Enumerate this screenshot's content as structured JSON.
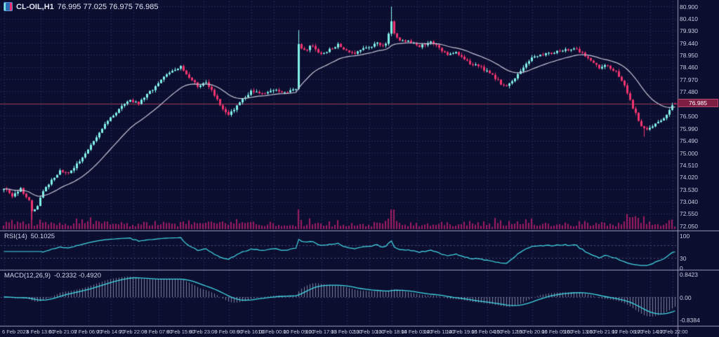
{
  "header": {
    "symbol_period": "CL-OIL,H1",
    "ohlc": "76.995 77.025 76.975 76.985",
    "bid_display": "76.985"
  },
  "panels": {
    "rsi": {
      "name": "RSI(14)",
      "value": "50.1025"
    },
    "macd": {
      "name": "MACD(12,26,9)",
      "value": "-0.2332 -0.4920"
    }
  },
  "chart_data": {
    "type": "candlestick",
    "symbol": "CL-OIL",
    "timeframe": "H1",
    "candle_count": 240,
    "current_price": 76.985,
    "last_candle": {
      "o": 76.995,
      "h": 77.025,
      "l": 76.975,
      "c": 76.985
    },
    "price_axis": {
      "min": 71.9,
      "max": 81.05,
      "labels": [
        {
          "t": "80.900",
          "v": 80.9
        },
        {
          "t": "80.410",
          "v": 80.41
        },
        {
          "t": "79.930",
          "v": 79.93
        },
        {
          "t": "79.440",
          "v": 79.44
        },
        {
          "t": "78.950",
          "v": 78.95
        },
        {
          "t": "78.460",
          "v": 78.46
        },
        {
          "t": "77.970",
          "v": 77.97
        },
        {
          "t": "77.480",
          "v": 77.48
        },
        {
          "t": "76.990",
          "v": 76.99
        },
        {
          "t": "76.500",
          "v": 76.5
        },
        {
          "t": "75.990",
          "v": 75.99
        },
        {
          "t": "75.490",
          "v": 75.49
        },
        {
          "t": "75.000",
          "v": 75.0
        },
        {
          "t": "74.510",
          "v": 74.51
        },
        {
          "t": "74.020",
          "v": 74.02
        },
        {
          "t": "73.530",
          "v": 73.53
        },
        {
          "t": "73.040",
          "v": 73.04
        },
        {
          "t": "72.550",
          "v": 72.55
        },
        {
          "t": "72.050",
          "v": 72.05
        }
      ]
    },
    "time_axis": {
      "labels": [
        {
          "t": "6 Feb 2023",
          "i": 0
        },
        {
          "t": "6 Feb 13:00",
          "i": 13
        },
        {
          "t": "6 Feb 21:00",
          "i": 21
        },
        {
          "t": "7 Feb 06:00",
          "i": 30
        },
        {
          "t": "7 Feb 14:00",
          "i": 38
        },
        {
          "t": "7 Feb 22:00",
          "i": 46
        },
        {
          "t": "8 Feb 07:00",
          "i": 55
        },
        {
          "t": "8 Feb 15:00",
          "i": 63
        },
        {
          "t": "8 Feb 23:00",
          "i": 71
        },
        {
          "t": "9 Feb 08:00",
          "i": 80
        },
        {
          "t": "9 Feb 16:00",
          "i": 88
        },
        {
          "t": "10 Feb 00:00",
          "i": 96
        },
        {
          "t": "10 Feb 09:00",
          "i": 105
        },
        {
          "t": "10 Feb 17:00",
          "i": 113
        },
        {
          "t": "13 Feb 02:00",
          "i": 122
        },
        {
          "t": "13 Feb 10:00",
          "i": 130
        },
        {
          "t": "13 Feb 18:00",
          "i": 138
        },
        {
          "t": "14 Feb 03:00",
          "i": 147
        },
        {
          "t": "14 Feb 11:00",
          "i": 155
        },
        {
          "t": "14 Feb 19:00",
          "i": 163
        },
        {
          "t": "15 Feb 04:00",
          "i": 172
        },
        {
          "t": "15 Feb 12:00",
          "i": 180
        },
        {
          "t": "15 Feb 20:00",
          "i": 188
        },
        {
          "t": "16 Feb 05:00",
          "i": 197
        },
        {
          "t": "16 Feb 13:00",
          "i": 205
        },
        {
          "t": "16 Feb 21:00",
          "i": 213
        },
        {
          "t": "17 Feb 06:00",
          "i": 222
        },
        {
          "t": "17 Feb 14:00",
          "i": 230
        },
        {
          "t": "17 Feb 22:00",
          "i": 238
        }
      ]
    },
    "price_anchors": [
      [
        0,
        73.6
      ],
      [
        3,
        73.25
      ],
      [
        6,
        73.55
      ],
      [
        9,
        73.1
      ],
      [
        10,
        72.6
      ],
      [
        12,
        72.9
      ],
      [
        14,
        73.45
      ],
      [
        17,
        73.9
      ],
      [
        20,
        74.25
      ],
      [
        23,
        74.15
      ],
      [
        26,
        74.55
      ],
      [
        30,
        75.1
      ],
      [
        34,
        75.8
      ],
      [
        38,
        76.45
      ],
      [
        42,
        76.85
      ],
      [
        45,
        77.1
      ],
      [
        48,
        77.0
      ],
      [
        52,
        77.45
      ],
      [
        56,
        77.95
      ],
      [
        60,
        78.3
      ],
      [
        63,
        78.45
      ],
      [
        66,
        78.05
      ],
      [
        69,
        77.7
      ],
      [
        72,
        77.85
      ],
      [
        75,
        77.35
      ],
      [
        78,
        76.75
      ],
      [
        80,
        76.5
      ],
      [
        84,
        77.05
      ],
      [
        88,
        77.5
      ],
      [
        92,
        77.35
      ],
      [
        96,
        77.55
      ],
      [
        100,
        77.45
      ],
      [
        104,
        77.6
      ],
      [
        105,
        79.4
      ],
      [
        107,
        79.1
      ],
      [
        110,
        79.35
      ],
      [
        113,
        78.95
      ],
      [
        116,
        79.15
      ],
      [
        119,
        79.35
      ],
      [
        122,
        79.15
      ],
      [
        125,
        79.0
      ],
      [
        129,
        79.25
      ],
      [
        133,
        79.4
      ],
      [
        136,
        79.35
      ],
      [
        138,
        80.35
      ],
      [
        139,
        79.85
      ],
      [
        141,
        79.55
      ],
      [
        144,
        79.5
      ],
      [
        148,
        79.3
      ],
      [
        152,
        79.5
      ],
      [
        155,
        79.2
      ],
      [
        158,
        78.95
      ],
      [
        161,
        79.1
      ],
      [
        164,
        78.75
      ],
      [
        167,
        78.55
      ],
      [
        170,
        78.45
      ],
      [
        174,
        78.1
      ],
      [
        178,
        77.7
      ],
      [
        181,
        77.85
      ],
      [
        184,
        78.3
      ],
      [
        188,
        78.85
      ],
      [
        191,
        78.95
      ],
      [
        195,
        79.0
      ],
      [
        199,
        79.15
      ],
      [
        203,
        79.2
      ],
      [
        206,
        79.05
      ],
      [
        209,
        78.7
      ],
      [
        212,
        78.45
      ],
      [
        215,
        78.5
      ],
      [
        218,
        78.25
      ],
      [
        221,
        77.7
      ],
      [
        224,
        76.8
      ],
      [
        227,
        76.1
      ],
      [
        229,
        75.9
      ],
      [
        231,
        76.1
      ],
      [
        234,
        76.3
      ],
      [
        236,
        76.55
      ],
      [
        238,
        76.9
      ],
      [
        239,
        76.985
      ]
    ],
    "wick_events": [
      {
        "i": 10,
        "low": 72.3
      },
      {
        "i": 105,
        "high": 79.95
      },
      {
        "i": 138,
        "high": 80.9
      },
      {
        "i": 228,
        "low": 75.65
      }
    ],
    "indicators": {
      "ma": {
        "type": "EMA",
        "period": 21,
        "color": "#c4c4d4"
      },
      "rsi": {
        "period": 14,
        "levels": [
          30,
          70
        ],
        "color": "#41dbe6",
        "axis_labels": [
          {
            "t": "100",
            "v": 100
          },
          {
            "t": "30",
            "v": 30
          },
          {
            "t": "0",
            "v": 0
          }
        ]
      },
      "macd": {
        "fast": 12,
        "slow": 26,
        "signal": 9,
        "range": [
          -0.9,
          0.9
        ],
        "line_color": "#41dbe6",
        "hist_color": "rgba(200,205,228,0.6)",
        "axis_labels": [
          {
            "t": "0.8423",
            "v": 0.8423
          },
          {
            "t": "0.00",
            "v": 0
          },
          {
            "t": "-0.8384",
            "v": -0.8384
          }
        ]
      }
    },
    "colors": {
      "bull": "#82f2e8",
      "bear": "#f2346f",
      "volume": "#9e1c61",
      "grid": "rgba(92,102,192,0.48)",
      "bg": "#0c0e30",
      "separator": "#9a9ab8",
      "text": "#c9cde0",
      "tag_bg": "#7e1e41",
      "price_line": "#9c3a56"
    }
  }
}
